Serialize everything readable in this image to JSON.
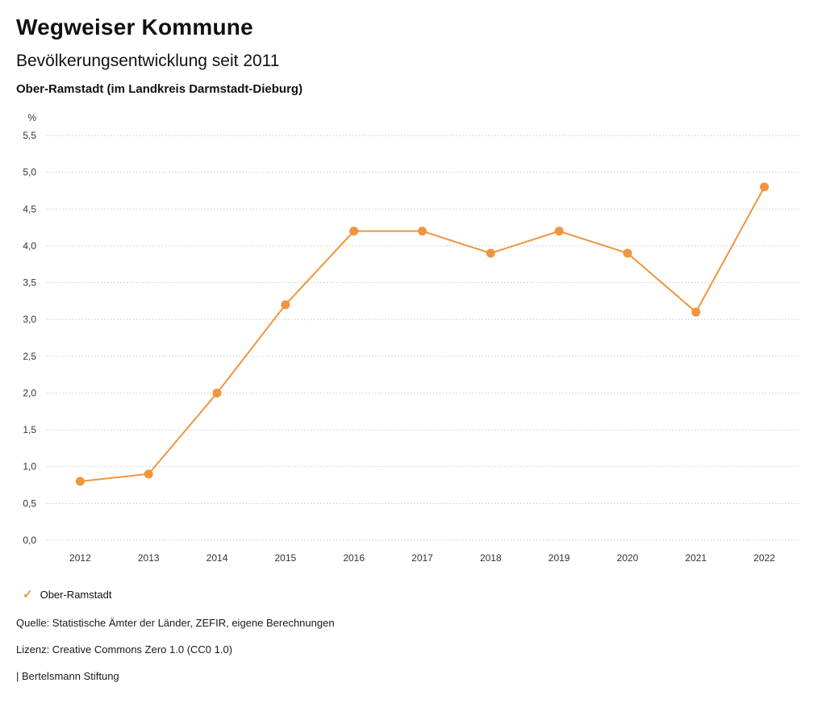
{
  "header": {
    "brand": "Wegweiser Kommune",
    "title": "Bevölkerungsentwicklung seit 2011",
    "subtitle": "Ober-Ramstadt (im Landkreis Darmstadt-Dieburg)"
  },
  "chart_data": {
    "type": "line",
    "categories": [
      "2012",
      "2013",
      "2014",
      "2015",
      "2016",
      "2017",
      "2018",
      "2019",
      "2020",
      "2021",
      "2022"
    ],
    "series": [
      {
        "name": "Ober-Ramstadt",
        "values": [
          0.8,
          0.9,
          2.0,
          3.2,
          4.2,
          4.2,
          3.9,
          4.2,
          3.9,
          3.1,
          4.8
        ],
        "color": "#F0953F"
      }
    ],
    "title": "Bevölkerungsentwicklung seit 2011",
    "xlabel": "",
    "ylabel": "%",
    "ylim": [
      0,
      5.5
    ],
    "ytick_step": 0.5,
    "grid": true,
    "grid_style": "dotted",
    "legend_position": "bottom"
  },
  "legend": {
    "items": [
      {
        "label": "Ober-Ramstadt",
        "check": "✓",
        "color": "#F0953F"
      }
    ]
  },
  "footer": {
    "source": "Quelle: Statistische Ämter der Länder, ZEFIR, eigene Berechnungen",
    "license": "Lizenz: Creative Commons Zero 1.0 (CC0 1.0)",
    "attribution": "| Bertelsmann Stiftung"
  },
  "colors": {
    "accent": "#F0953F",
    "grid": "#c8c8c8",
    "tick_text": "#333333",
    "text": "#111111"
  }
}
